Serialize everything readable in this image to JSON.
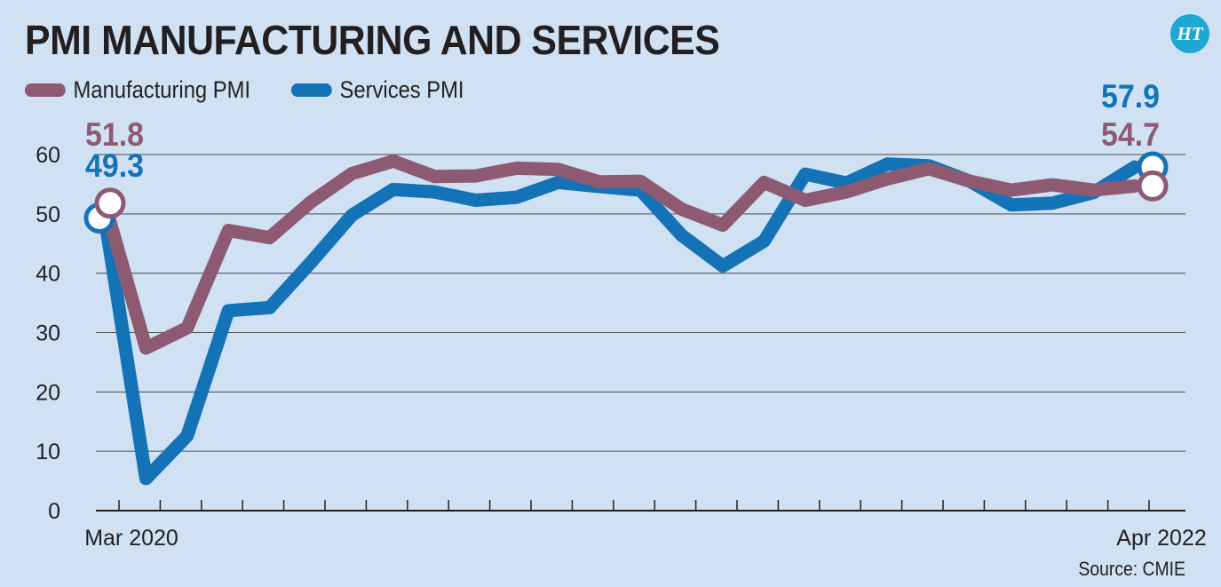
{
  "brand": {
    "logo_text": "HT"
  },
  "source_note": "Source: CMIE",
  "colors": {
    "background": "#cfe1f3",
    "manufacturing": "#8e5a72",
    "services": "#1473b7",
    "grid": "#4a4a4a"
  },
  "chart_data": {
    "type": "line",
    "title": "PMI MANUFACTURING AND SERVICES",
    "xlabel": "",
    "ylabel": "",
    "x": [
      "Mar 2020",
      "Apr 2020",
      "May 2020",
      "Jun 2020",
      "Jul 2020",
      "Aug 2020",
      "Sep 2020",
      "Oct 2020",
      "Nov 2020",
      "Dec 2020",
      "Jan 2021",
      "Feb 2021",
      "Mar 2021",
      "Apr 2021",
      "May 2021",
      "Jun 2021",
      "Jul 2021",
      "Aug 2021",
      "Sep 2021",
      "Oct 2021",
      "Nov 2021",
      "Dec 2021",
      "Jan 2022",
      "Feb 2022",
      "Mar 2022",
      "Apr 2022"
    ],
    "x_tick_labels": [
      {
        "index": 0,
        "label": "Mar 2020"
      },
      {
        "index": 25,
        "label": "Apr 2022"
      }
    ],
    "ylim": [
      0,
      60
    ],
    "yticks": [
      0,
      10,
      20,
      30,
      40,
      50,
      60
    ],
    "grid": true,
    "legend_position": "top-left",
    "series": [
      {
        "name": "Manufacturing PMI",
        "color": "#8e5a72",
        "values": [
          51.8,
          27.4,
          30.8,
          47.2,
          46.0,
          52.0,
          56.8,
          58.9,
          56.3,
          56.4,
          57.7,
          57.5,
          55.4,
          55.5,
          50.8,
          48.1,
          55.3,
          52.3,
          53.7,
          55.9,
          57.6,
          55.5,
          54.0,
          54.9,
          54.0,
          54.7
        ],
        "end_labels": {
          "first": "51.8",
          "last": "54.7"
        }
      },
      {
        "name": "Services PMI",
        "color": "#1473b7",
        "values": [
          49.3,
          5.4,
          12.6,
          33.7,
          34.2,
          41.8,
          49.8,
          54.1,
          53.7,
          52.3,
          52.8,
          55.3,
          54.6,
          54.0,
          46.4,
          41.2,
          45.4,
          56.7,
          55.2,
          58.4,
          58.1,
          55.5,
          51.5,
          51.8,
          53.6,
          57.9
        ],
        "end_labels": {
          "first": "49.3",
          "last": "57.9"
        }
      }
    ]
  }
}
